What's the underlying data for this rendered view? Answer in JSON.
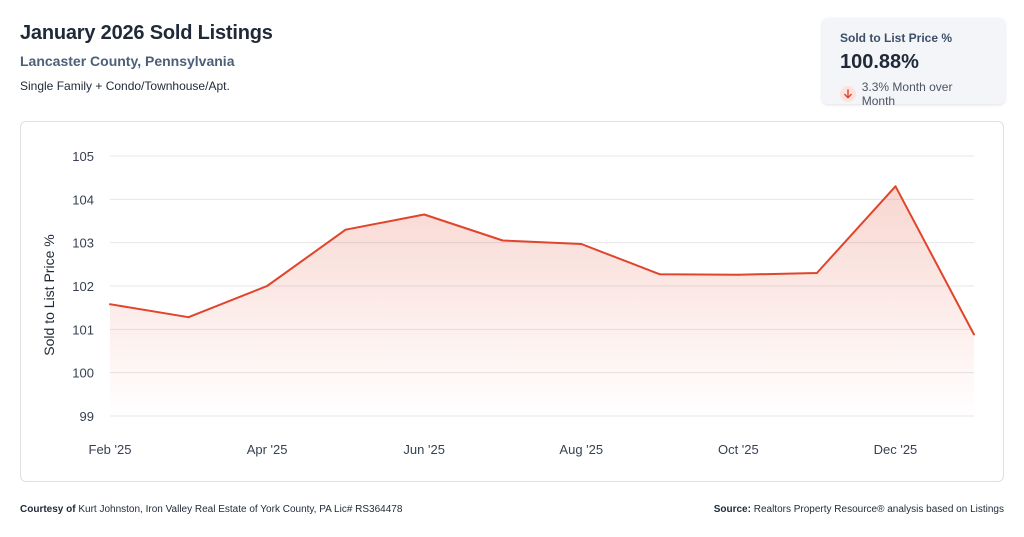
{
  "header": {
    "title": "January 2026 Sold Listings",
    "subtitle": "Lancaster County, Pennsylvania",
    "property_types": "Single Family + Condo/Townhouse/Apt."
  },
  "kpi": {
    "label": "Sold to List Price %",
    "value": "100.88%",
    "change_text": "3.3% Month over Month",
    "direction_icon": "arrow-down-icon",
    "change_color": "#e0452b"
  },
  "chart_data": {
    "type": "area",
    "ylabel": "Sold to List Price %",
    "ylim": [
      99,
      105
    ],
    "yticks": [
      99,
      100,
      101,
      102,
      103,
      104,
      105
    ],
    "grid": true,
    "x": [
      "Feb '25",
      "Mar '25",
      "Apr '25",
      "May '25",
      "Jun '25",
      "Jul '25",
      "Aug '25",
      "Sep '25",
      "Oct '25",
      "Nov '25",
      "Dec '25",
      "Jan '26"
    ],
    "x_tick_labels": [
      "Feb '25",
      "Apr '25",
      "Jun '25",
      "Aug '25",
      "Oct '25",
      "Dec '25"
    ],
    "series": [
      {
        "values": [
          101.58,
          101.28,
          102.0,
          103.3,
          103.65,
          103.05,
          102.97,
          102.27,
          102.26,
          102.3,
          104.3,
          100.88
        ],
        "color": "#e0452b"
      }
    ]
  },
  "footer": {
    "courtesy_label": "Courtesy of",
    "courtesy_text": "Kurt Johnston, Iron Valley Real Estate of York County, PA Lic# RS364478",
    "source_label": "Source:",
    "source_text": "Realtors Property Resource® analysis based on Listings"
  }
}
